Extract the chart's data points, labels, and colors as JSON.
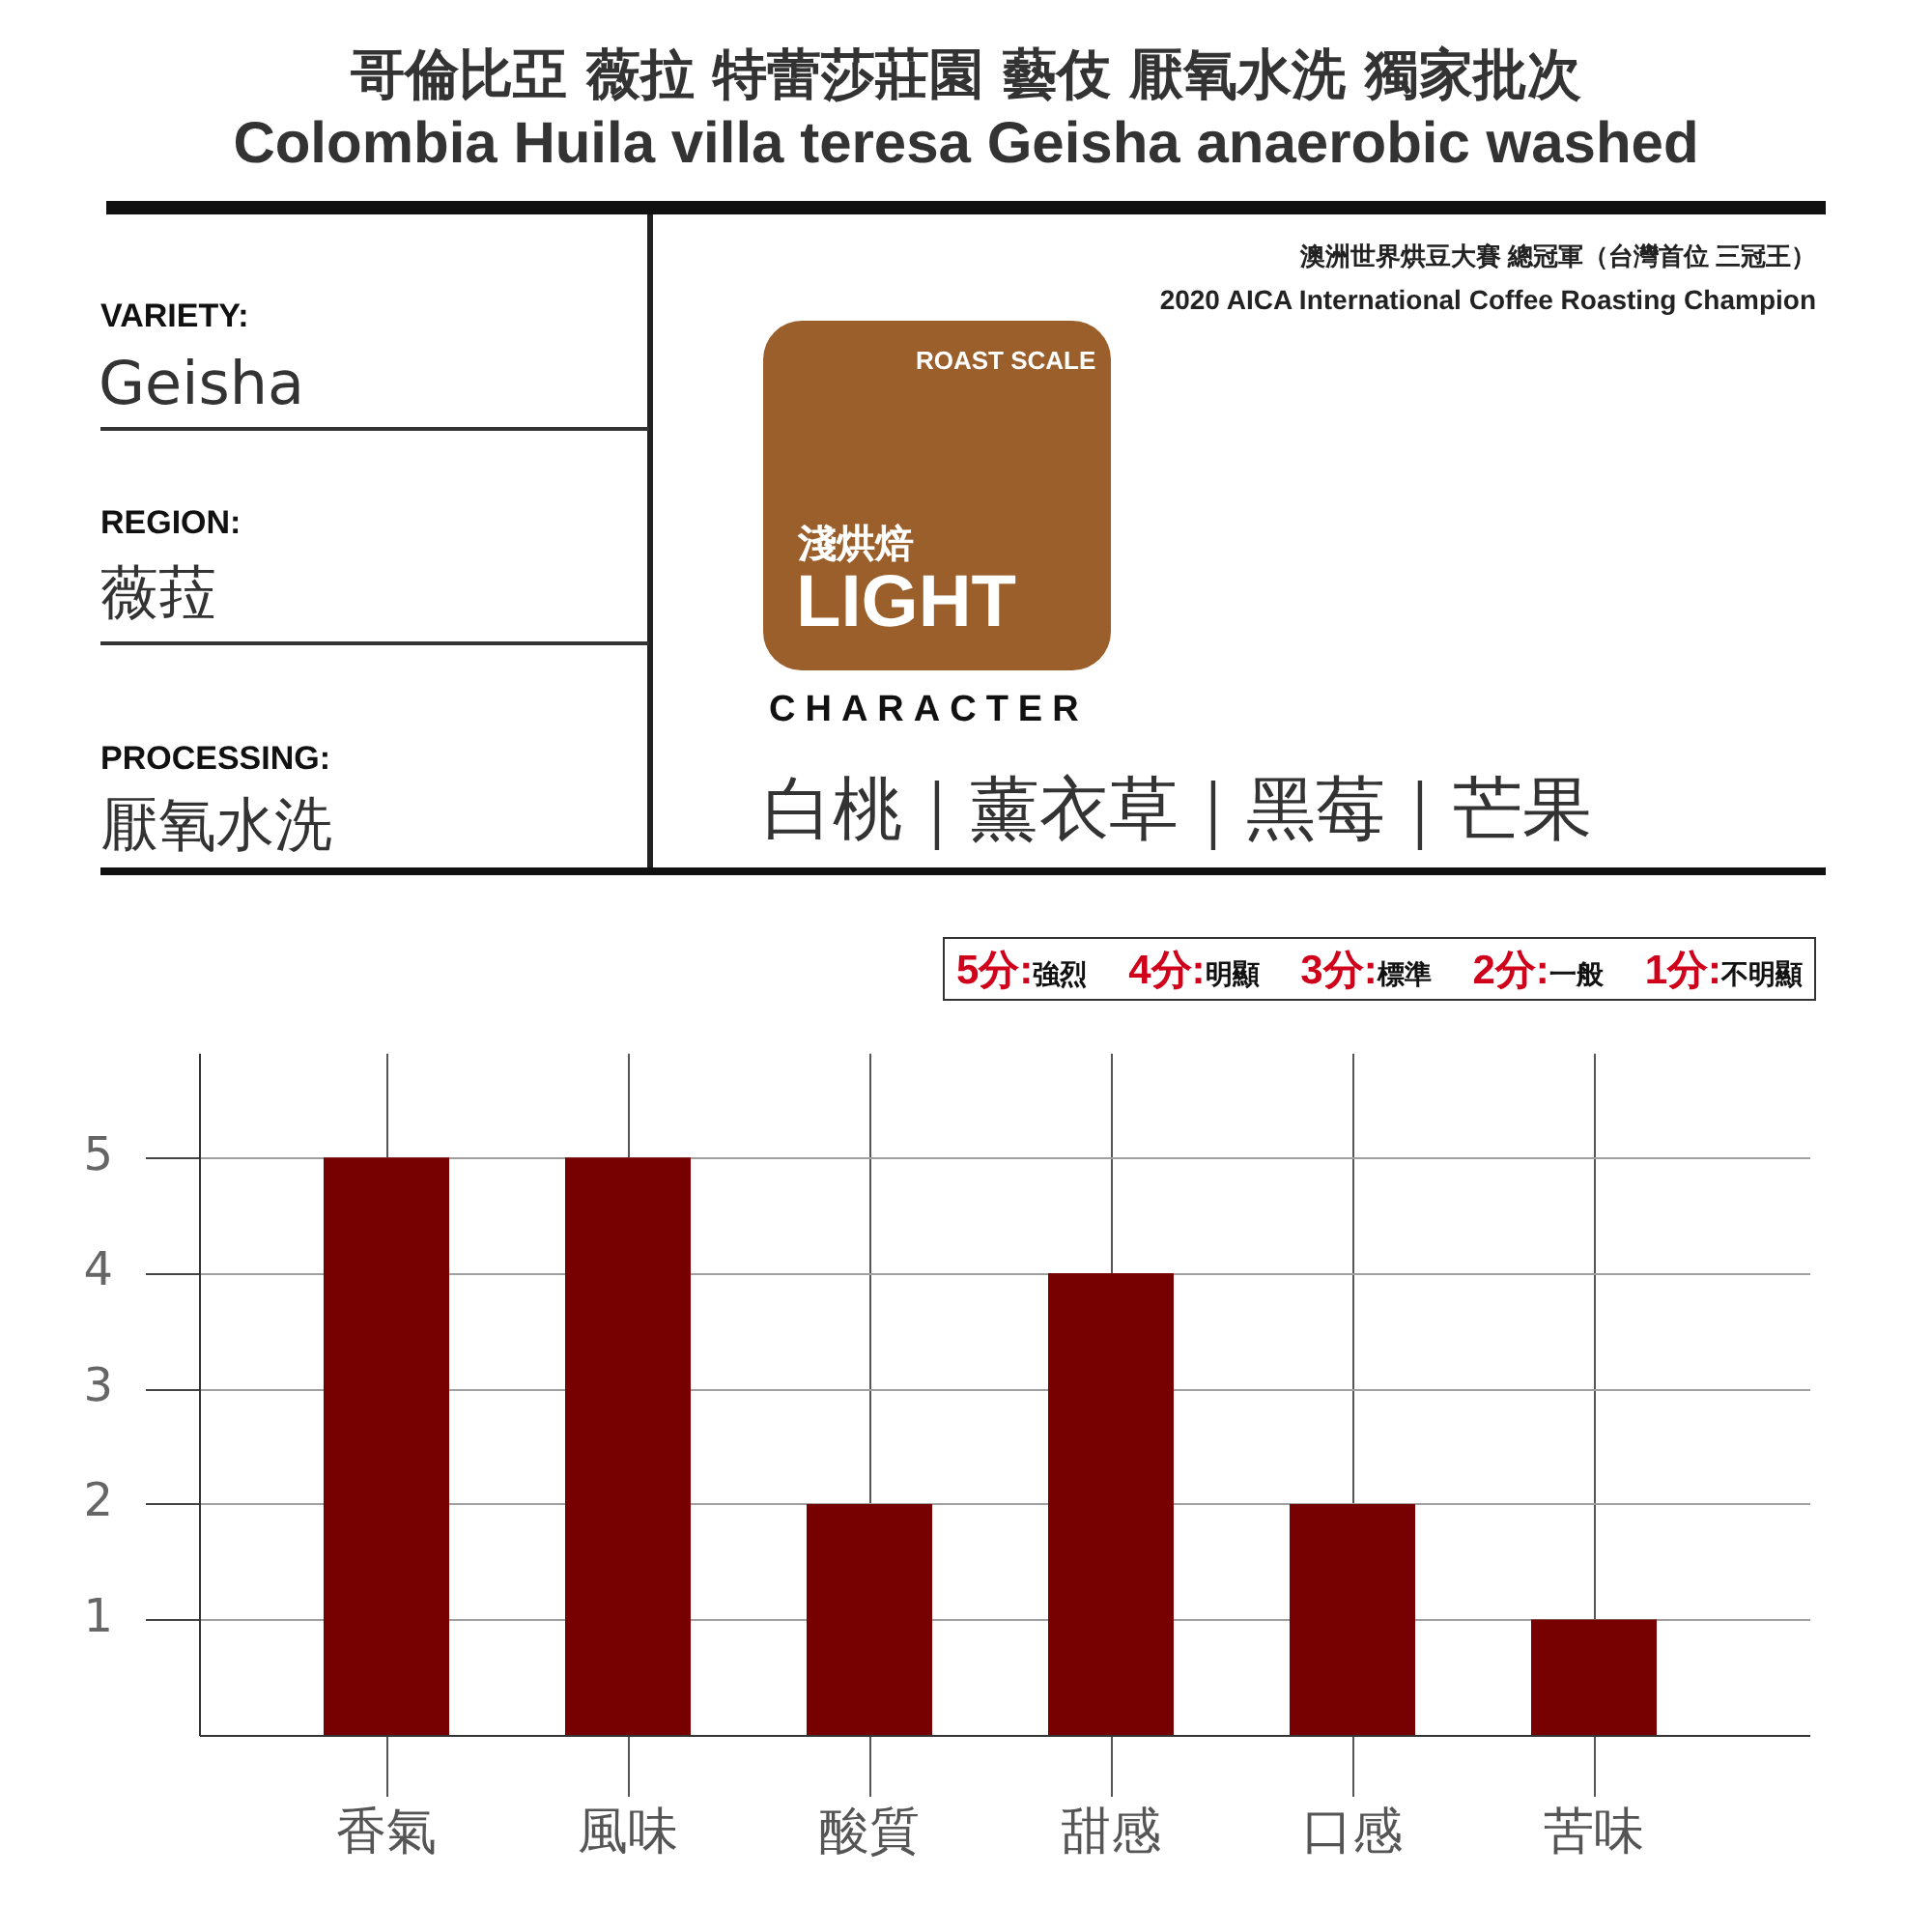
{
  "chart_data": {
    "type": "bar",
    "title": "哥倫比亞 薇拉 特蕾莎莊園 藝伎 厭氧水洗  獨家批次",
    "subtitle": "Colombia Huila villa teresa Geisha anaerobic washed",
    "categories": [
      "香氣",
      "風味",
      "酸質",
      "甜感",
      "口感",
      "苦味"
    ],
    "values": [
      5,
      5,
      2,
      4,
      2,
      1
    ],
    "color": "#770000",
    "ylim": [
      0,
      5.9
    ],
    "yticks": [
      1,
      2,
      3,
      4,
      5
    ],
    "grid": true,
    "annotations": [
      "VARIETY:",
      "Geisha",
      "REGION:",
      "薇菈",
      "PROCESSING:",
      "厭氧水洗",
      "澳洲世界烘豆大賽 總冠軍（台灣首位 三冠王）",
      "2020 AICA International Coffee Roasting Champion",
      "ROAST SCALE",
      "淺烘焙",
      "LIGHT",
      "CHARACTER",
      "白桃｜薰衣草｜黑莓｜芒果",
      "5分:強烈 4分:明顯 3分:標準 2分:一般 1分:不明顯"
    ]
  }
}
